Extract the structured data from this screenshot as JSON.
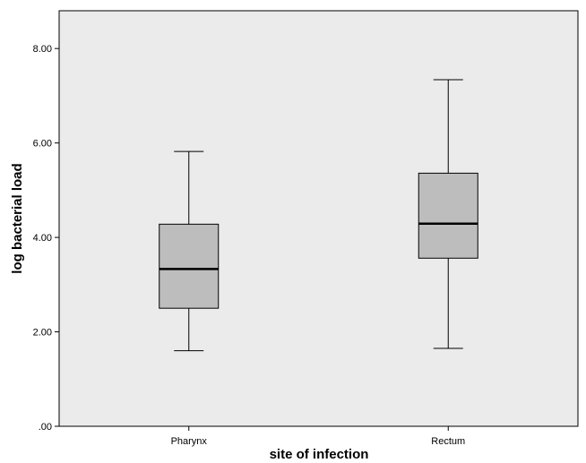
{
  "chart_data": {
    "type": "boxplot",
    "title": "",
    "xlabel": "site of infection",
    "ylabel": "log bacterial load",
    "ylim": [
      0,
      8.8
    ],
    "y_ticks": [
      0,
      2,
      4,
      6,
      8
    ],
    "y_tick_labels": [
      ".00",
      "2.00",
      "4.00",
      "6.00",
      "8.00"
    ],
    "grid": false,
    "categories": [
      "Pharynx",
      "Rectum"
    ],
    "boxes": [
      {
        "category": "Pharynx",
        "min": 1.6,
        "q1": 2.5,
        "median": 3.33,
        "q3": 4.28,
        "max": 5.82
      },
      {
        "category": "Rectum",
        "min": 1.65,
        "q1": 3.56,
        "median": 4.29,
        "q3": 5.36,
        "max": 7.34
      }
    ],
    "colors": {
      "plot_background": "#ebebeb",
      "box_fill": "#bdbdbd",
      "stroke": "#000000"
    }
  }
}
